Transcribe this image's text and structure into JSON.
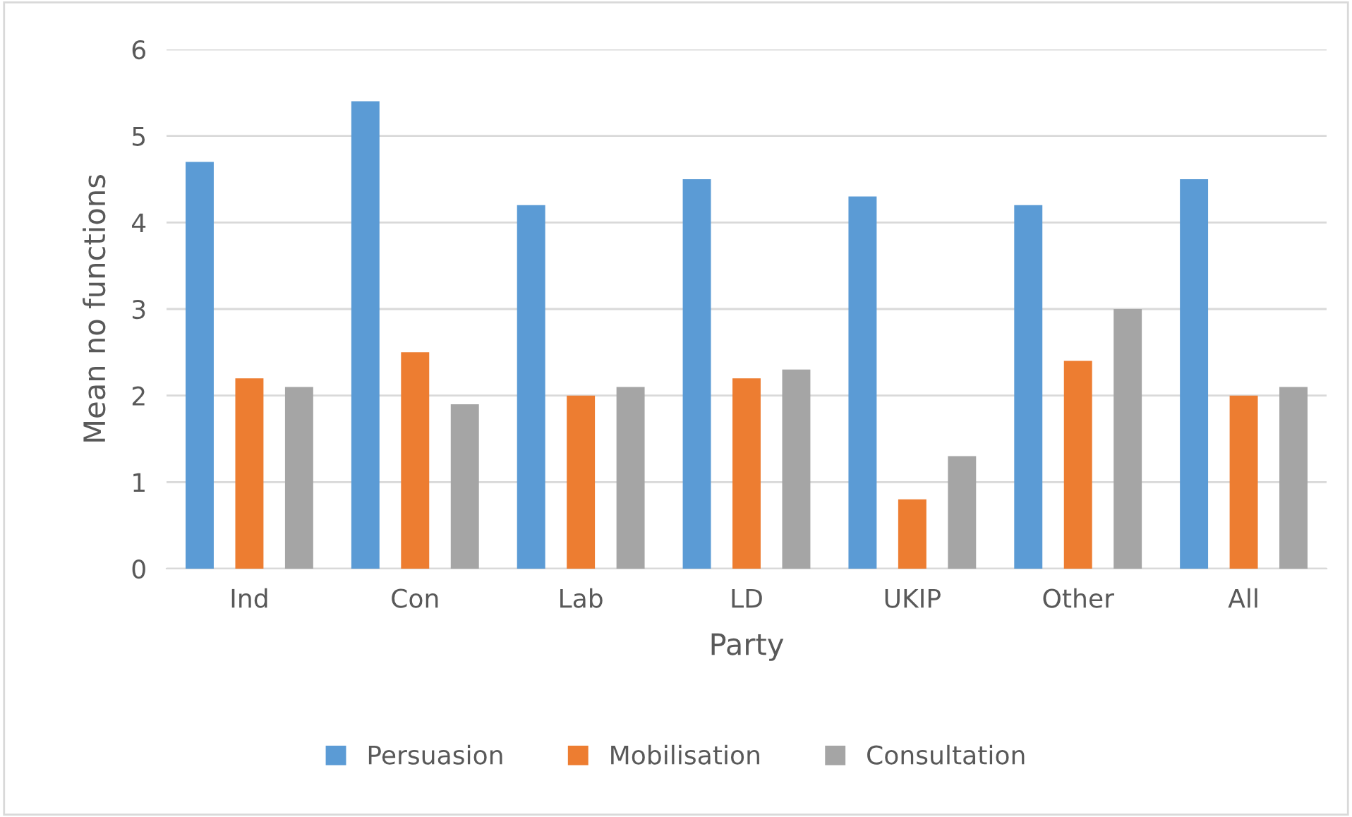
{
  "chart_data": {
    "type": "bar",
    "xlabel": "Party",
    "ylabel": "Mean no functions",
    "categories": [
      "Ind",
      "Con",
      "Lab",
      "LD",
      "UKIP",
      "Other",
      "All"
    ],
    "series": [
      {
        "name": "Persuasion",
        "color": "#5b9bd5",
        "values": [
          4.7,
          5.4,
          4.2,
          4.5,
          4.3,
          4.2,
          4.5
        ]
      },
      {
        "name": "Mobilisation",
        "color": "#ed7d31",
        "values": [
          2.2,
          2.5,
          2.0,
          2.2,
          0.8,
          2.4,
          2.0
        ]
      },
      {
        "name": "Consultation",
        "color": "#a5a5a5",
        "values": [
          2.1,
          1.9,
          2.1,
          2.3,
          1.3,
          3.0,
          2.1
        ]
      }
    ],
    "ylim": [
      0,
      6
    ],
    "yticks": [
      0,
      1,
      2,
      3,
      4,
      5,
      6
    ],
    "grid": "y",
    "legend": "bottom"
  }
}
